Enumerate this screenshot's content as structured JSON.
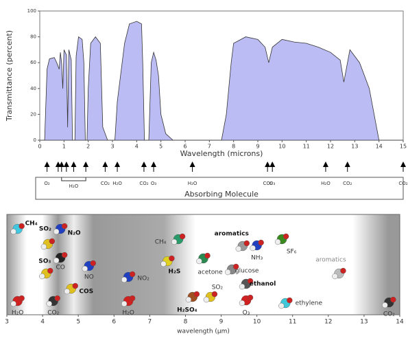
{
  "chart_data": [
    {
      "type": "area",
      "color": "#bcbcf4",
      "x": [
        0,
        0.2,
        0.3,
        0.4,
        0.6,
        0.7,
        0.8,
        0.85,
        0.9,
        0.95,
        1.0,
        1.1,
        1.15,
        1.2,
        1.3,
        1.35,
        1.45,
        1.5,
        1.6,
        1.75,
        1.82,
        1.88,
        1.95,
        2.0,
        2.1,
        2.3,
        2.5,
        2.6,
        2.8,
        3.1,
        3.2,
        3.4,
        3.5,
        3.7,
        4.0,
        4.2,
        4.25,
        4.32,
        4.5,
        4.6,
        4.7,
        4.8,
        4.9,
        5.0,
        5.2,
        5.5,
        7.5,
        7.7,
        7.9,
        8.0,
        8.5,
        9.0,
        9.3,
        9.45,
        9.6,
        10.0,
        10.5,
        11.0,
        11.5,
        12.0,
        12.4,
        12.55,
        12.65,
        12.8,
        13.2,
        13.6,
        13.9,
        14.0,
        15
      ],
      "values": [
        0,
        0,
        55,
        63,
        64,
        60,
        55,
        68,
        60,
        40,
        70,
        66,
        10,
        70,
        62,
        0,
        0,
        65,
        80,
        78,
        60,
        0,
        0,
        40,
        75,
        80,
        75,
        10,
        0,
        0,
        30,
        60,
        75,
        90,
        92,
        90,
        60,
        0,
        0,
        60,
        68,
        62,
        50,
        20,
        5,
        0,
        0,
        20,
        60,
        75,
        80,
        78,
        72,
        60,
        72,
        78,
        76,
        75,
        72,
        68,
        62,
        45,
        55,
        70,
        60,
        40,
        10,
        0,
        0
      ],
      "xlim": [
        0,
        15
      ],
      "ylim": [
        0,
        100
      ],
      "xticks": [
        0,
        1,
        2,
        3,
        4,
        5,
        6,
        7,
        8,
        9,
        10,
        11,
        12,
        13,
        14,
        15
      ],
      "yticks": [
        0,
        20,
        40,
        60,
        80,
        100
      ],
      "xlabel": "Wavelength (microns)",
      "ylabel": "Transmittance (percent)"
    },
    {
      "type": "markers",
      "xlim": [
        0,
        15
      ],
      "x": [
        0.3,
        0.76,
        0.9,
        1.1,
        1.4,
        1.9,
        2.7,
        3.2,
        4.3,
        4.7,
        6.3,
        9.4,
        9.6,
        11.8,
        12.7,
        15
      ],
      "labels": [
        "O₂",
        null,
        null,
        null,
        null,
        null,
        "CO₂",
        "H₂O",
        "CO₂",
        "O₃",
        "H₂O",
        "CO₂",
        "O₃",
        "H₂O",
        "CO₂",
        "CO₂"
      ],
      "bracket_label": "H₂O",
      "title": "Absorbing Molecule"
    },
    {
      "type": "molecules",
      "xlim": [
        3,
        14
      ],
      "xticks": [
        3,
        4,
        5,
        6,
        7,
        8,
        9,
        10,
        11,
        12,
        13,
        14
      ],
      "xlabel": "wavelength (µm)",
      "x": [
        3.3,
        4.15,
        4.5,
        4.1,
        4.5,
        5.3,
        4.8,
        3.3,
        4.3,
        7.8,
        6.4,
        7.5,
        6.4,
        9.6,
        8.5,
        9.3,
        10.0,
        10.7,
        12.3,
        9.7,
        8.7,
        8.2,
        9.7,
        10.8,
        13.7
      ],
      "labels": [
        "CH₄",
        "SO₂",
        "N₂O",
        "SO₃",
        "CO",
        "NO",
        "COS",
        "H₂O",
        "CO₂",
        "CH₄",
        "NO₂",
        "H₂S",
        "H₂O",
        "aromatics",
        "acetone",
        "glucose",
        "NH₃",
        "SF₆",
        "aromatics",
        "ethanol",
        "SO₂",
        "H₂SO₄",
        "O₃",
        "ethylene",
        "CO₂"
      ],
      "colors": [
        "#3fc8e0",
        "#e0c020",
        "#2040c0",
        "#e0c020",
        "#222222",
        "#2040c0",
        "#e0c020",
        "#d02020",
        "#333333",
        "#2a9a6a",
        "#2040c0",
        "#e0d020",
        "#d02020",
        "#999999",
        "#2a8a50",
        "#888888",
        "#2040c0",
        "#3a8a20",
        "#bbbbbb",
        "#555555",
        "#e0c020",
        "#a05020",
        "#d02020",
        "#40c8d8",
        "#333333"
      ]
    }
  ]
}
